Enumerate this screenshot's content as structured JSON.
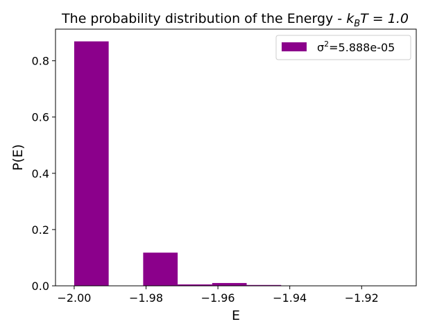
{
  "chart_data": {
    "type": "bar",
    "title_main": "The probability distribution of the Energy - ",
    "title_math_k": "k",
    "title_math_sub": "B",
    "title_math_rest": "T = 1.0",
    "xlabel": "E",
    "ylabel": "P(E)",
    "xlim": [
      -2.0052,
      -1.9048
    ],
    "ylim": [
      0,
      0.9125
    ],
    "xticks": [
      -2.0,
      -1.98,
      -1.96,
      -1.94,
      -1.92
    ],
    "xtick_labels": [
      "−2.00",
      "−1.98",
      "−1.96",
      "−1.94",
      "−1.92"
    ],
    "yticks": [
      0.0,
      0.2,
      0.4,
      0.6,
      0.8
    ],
    "ytick_labels": [
      "0.0",
      "0.2",
      "0.4",
      "0.6",
      "0.8"
    ],
    "bin_width": 0.0096,
    "bins": [
      {
        "left": -2.0,
        "value": 0.869
      },
      {
        "left": -1.9904,
        "value": 0.0
      },
      {
        "left": -1.9808,
        "value": 0.118
      },
      {
        "left": -1.9712,
        "value": 0.005
      },
      {
        "left": -1.9616,
        "value": 0.01
      },
      {
        "left": -1.952,
        "value": 0.003
      },
      {
        "left": -1.9424,
        "value": 0.0
      },
      {
        "left": -1.9328,
        "value": 0.0
      },
      {
        "left": -1.9232,
        "value": 0.0
      },
      {
        "left": -1.9136,
        "value": 0.0
      }
    ],
    "bar_color": "#8b008b",
    "legend": {
      "position": "top-right",
      "label_prefix": "σ",
      "label_sup": "2",
      "label_rest": "=5.888e-05"
    },
    "grid": false
  }
}
